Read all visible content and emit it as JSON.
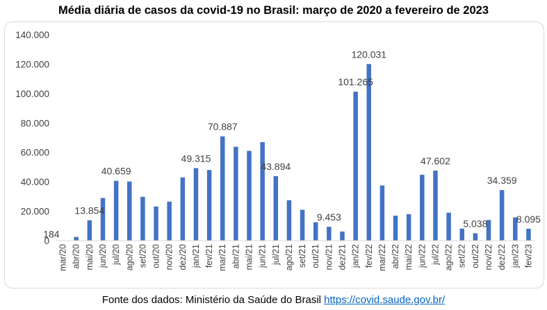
{
  "title": "Média diária de casos da covid-19 no Brasil: março de 2020 a fevereiro de 2023",
  "footer": {
    "text": "Fonte dos dados: Ministério da Saúde do Brasil ",
    "link": "https://covid.saude.gov.br/"
  },
  "chart_data": {
    "type": "bar",
    "color": "#4472c4",
    "ylim": [
      0,
      140000
    ],
    "yticks": [
      0,
      20000,
      40000,
      60000,
      80000,
      100000,
      120000,
      140000
    ],
    "ytick_labels": [
      "0",
      "20.000",
      "40.000",
      "60.000",
      "80.000",
      "100.000",
      "120.000",
      "140.000"
    ],
    "grid": false,
    "categories": [
      "mar/20",
      "abr/20",
      "mai/20",
      "jun/20",
      "jul/20",
      "ago/20",
      "set/20",
      "out/20",
      "nov/20",
      "dez/20",
      "jan/21",
      "fev/21",
      "mar/21",
      "abr/21",
      "mai/21",
      "jun/21",
      "jul/21",
      "ago/21",
      "set/21",
      "out/21",
      "nov/21",
      "dez/21",
      "jan/22",
      "fev/22",
      "mar/22",
      "abr/22",
      "mai/22",
      "jun/22",
      "jul/22",
      "ago/22",
      "set/22",
      "out/22",
      "nov/22",
      "dez/22",
      "jan/23",
      "fev/23"
    ],
    "values": [
      184,
      2500,
      13854,
      29000,
      40659,
      40200,
      29800,
      23200,
      26500,
      43000,
      49315,
      48000,
      70887,
      63800,
      61000,
      67000,
      43894,
      27500,
      21000,
      12500,
      9453,
      6200,
      101265,
      120031,
      37500,
      17000,
      18000,
      44800,
      47602,
      19000,
      8200,
      5038,
      14000,
      34359,
      15800,
      8095
    ],
    "data_labels": [
      {
        "index": 0,
        "text": "184"
      },
      {
        "index": 2,
        "text": "13.854"
      },
      {
        "index": 4,
        "text": "40.659"
      },
      {
        "index": 10,
        "text": "49.315"
      },
      {
        "index": 12,
        "text": "70.887"
      },
      {
        "index": 16,
        "text": "43.894"
      },
      {
        "index": 20,
        "text": "9.453"
      },
      {
        "index": 22,
        "text": "101.265"
      },
      {
        "index": 23,
        "text": "120.031"
      },
      {
        "index": 28,
        "text": "47.602"
      },
      {
        "index": 31,
        "text": "5.038"
      },
      {
        "index": 33,
        "text": "34.359"
      },
      {
        "index": 35,
        "text": "8.095"
      }
    ]
  }
}
